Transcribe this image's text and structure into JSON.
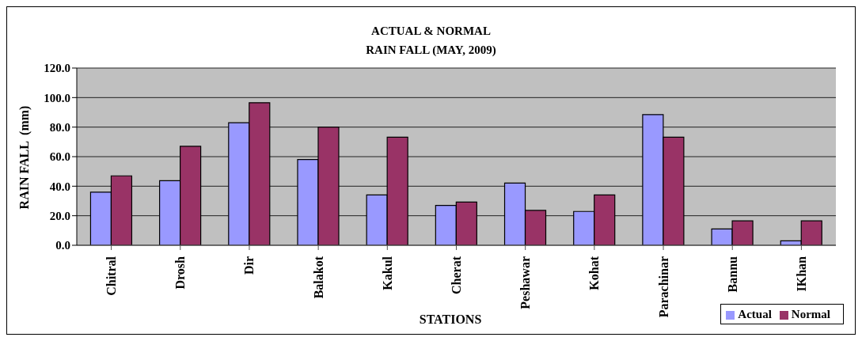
{
  "chart_data": {
    "type": "bar",
    "title": "ACTUAL & NORMAL\nRAIN FALL (MAY, 2009)",
    "xlabel": "STATIONS",
    "ylabel": "RAIN FALL  (mm)",
    "categories": [
      "Chitral",
      "Drosh",
      "Dir",
      "Balakot",
      "Kakul",
      "Cherat",
      "Peshawar",
      "Kohat",
      "Parachinar",
      "Bannu",
      "IKhan"
    ],
    "series": [
      {
        "name": "Actual",
        "color": "#9999ff",
        "values": [
          36,
          43.7,
          83,
          58.1,
          34.1,
          27,
          42.1,
          22.9,
          88.5,
          11,
          3
        ]
      },
      {
        "name": "Normal",
        "color": "#993366",
        "values": [
          47,
          67,
          96.5,
          80,
          73.2,
          29.3,
          23.6,
          34.1,
          73.2,
          16.5,
          16.5
        ]
      }
    ],
    "ylim": [
      0,
      120
    ],
    "yticks": [
      {
        "value": 0,
        "label": "0.0"
      },
      {
        "value": 20,
        "label": "20.0"
      },
      {
        "value": 40,
        "label": "40.0"
      },
      {
        "value": 60,
        "label": "60.0"
      },
      {
        "value": 80,
        "label": "80.0"
      },
      {
        "value": 100,
        "label": "100.0"
      },
      {
        "value": 120,
        "label": "120.0"
      }
    ],
    "grid": "y",
    "legend": "bottom right"
  }
}
